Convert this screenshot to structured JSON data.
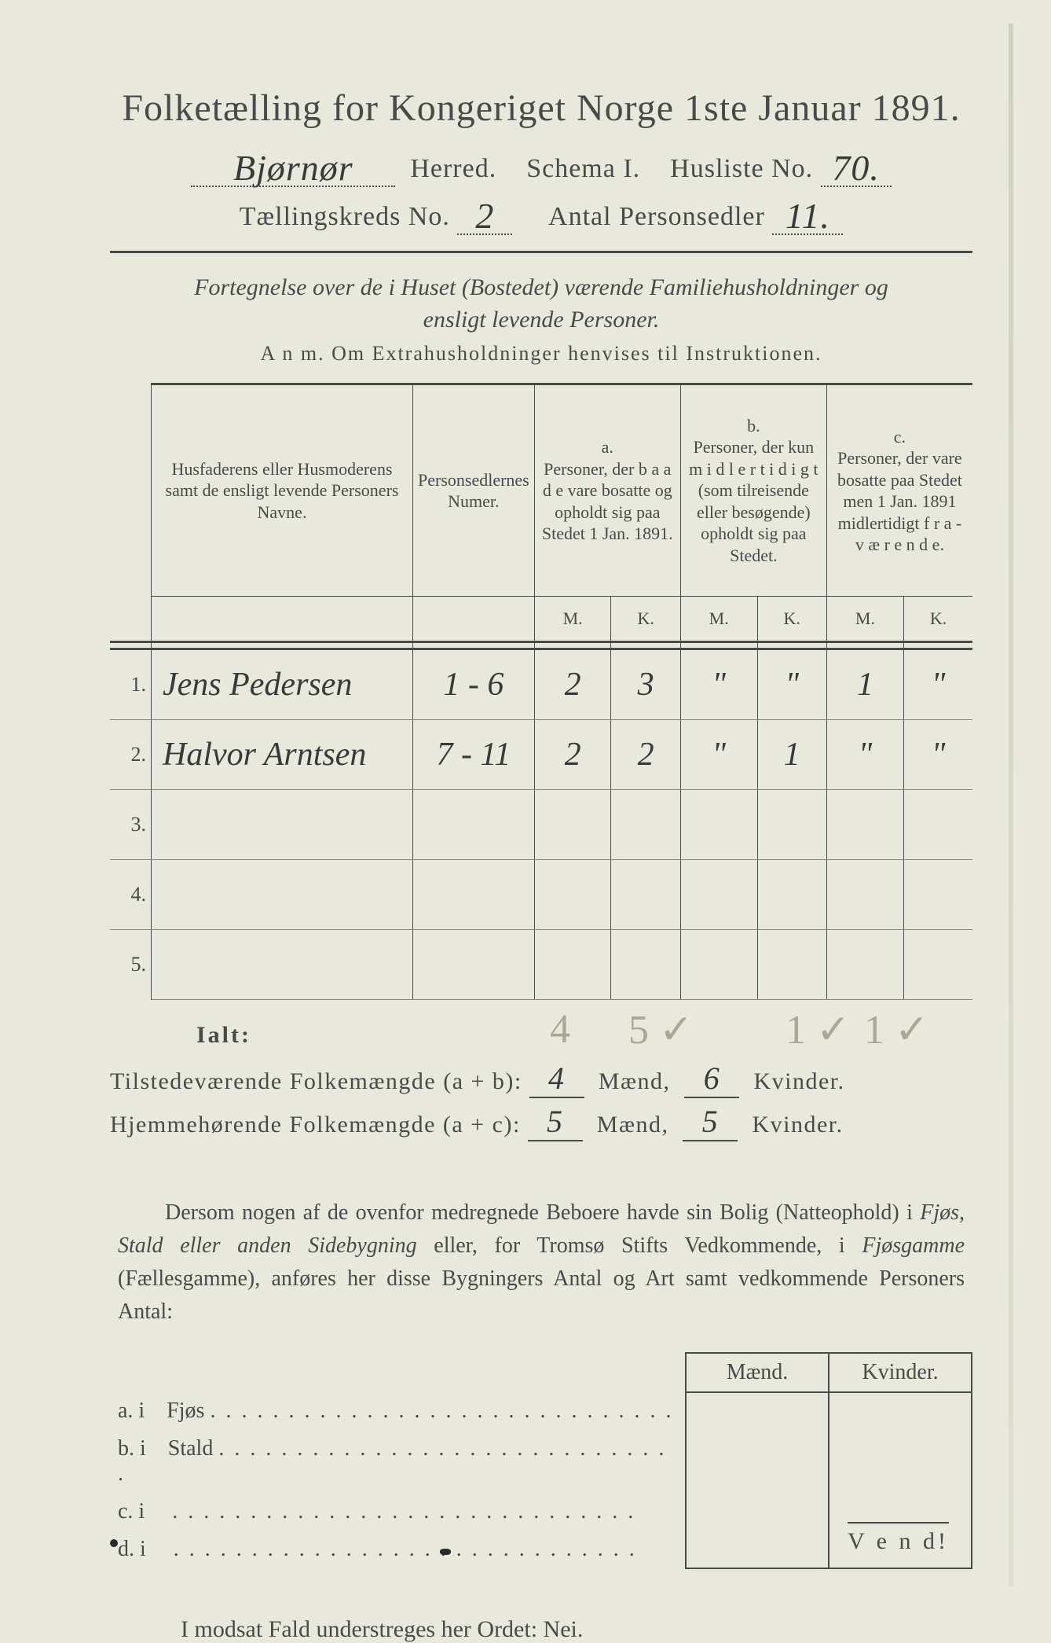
{
  "colors": {
    "paper": "#e8e9dc",
    "ink": "#4a4a4a",
    "pencil": "#a8a894",
    "handwriting": "#3a3a3a"
  },
  "title": "Folketælling for Kongeriget Norge 1ste Januar 1891.",
  "header": {
    "herred_value": "Bjørnør",
    "herred_label": "Herred.",
    "schema_label": "Schema I.",
    "husliste_label": "Husliste No.",
    "husliste_value": "70.",
    "kreds_label": "Tællingskreds No.",
    "kreds_value": "2",
    "personsedler_label": "Antal Personsedler",
    "personsedler_value": "11."
  },
  "subtitle": "Fortegnelse over de i Huset (Bostedet) værende Familiehusholdninger og ensligt levende Personer.",
  "anm": "A n m.  Om Extrahusholdninger henvises til Instruktionen.",
  "table": {
    "col_name": "Husfaderens eller Husmoderens samt de ensligt levende Personers Navne.",
    "col_num": "Personsedlernes Numer.",
    "col_a_top": "a.",
    "col_a": "Personer, der b a a d e vare bosatte og opholdt sig paa Stedet 1 Jan. 1891.",
    "col_b_top": "b.",
    "col_b": "Personer, der kun m i d l e r t i d i g t (som tilreisende eller besøgende) opholdt sig paa Stedet.",
    "col_c_top": "c.",
    "col_c": "Personer, der vare bosatte paa Stedet men 1 Jan. 1891 midlertidigt f r a - v æ r e n d e.",
    "m": "M.",
    "k": "K.",
    "rows": [
      {
        "n": "1.",
        "name": "Jens Pedersen",
        "num": "1 - 6",
        "a_m": "2",
        "a_k": "3",
        "b_m": "\"",
        "b_k": "\"",
        "c_m": "1",
        "c_k": "\""
      },
      {
        "n": "2.",
        "name": "Halvor Arntsen",
        "num": "7 - 11",
        "a_m": "2",
        "a_k": "2",
        "b_m": "\"",
        "b_k": "1",
        "c_m": "\"",
        "c_k": "\""
      },
      {
        "n": "3.",
        "name": "",
        "num": "",
        "a_m": "",
        "a_k": "",
        "b_m": "",
        "b_k": "",
        "c_m": "",
        "c_k": ""
      },
      {
        "n": "4.",
        "name": "",
        "num": "",
        "a_m": "",
        "a_k": "",
        "b_m": "",
        "b_k": "",
        "c_m": "",
        "c_k": ""
      },
      {
        "n": "5.",
        "name": "",
        "num": "",
        "a_m": "",
        "a_k": "",
        "b_m": "",
        "b_k": "",
        "c_m": "",
        "c_k": ""
      }
    ]
  },
  "ialt_label": "Ialt:",
  "pencil": {
    "p1": "4",
    "p2": "5 ✓",
    "p3": "1 ✓",
    "p4": "1 ✓"
  },
  "totals": {
    "line1_label_a": "Tilstedeværende Folkemængde (a + b):",
    "line1_m": "4",
    "line1_mlabel": "Mænd,",
    "line1_k": "6",
    "line1_klabel": "Kvinder.",
    "line2_label_a": "Hjemmehørende Folkemængde (a + c):",
    "line2_m": "5",
    "line2_k": "5"
  },
  "para_text": "Dersom nogen af de ovenfor medregnede Beboere havde sin Bolig (Natteophold) i Fjøs, Stald eller anden Sidebygning eller, for Tromsø Stifts Vedkommende, i Fjøsgamme (Fællesgamme), anføres her disse Bygningers Antal og Art samt vedkommende Personers Antal:",
  "side": {
    "h1": "Mænd.",
    "h2": "Kvinder.",
    "rows": [
      {
        "l": "a.  i",
        "t": "Fjøs"
      },
      {
        "l": "b.  i",
        "t": "Stald"
      },
      {
        "l": "c.  i",
        "t": ""
      },
      {
        "l": "d.  i",
        "t": ""
      }
    ]
  },
  "modsat": "I modsat Fald understreges her Ordet: Nei.",
  "vend": "V e n d!"
}
